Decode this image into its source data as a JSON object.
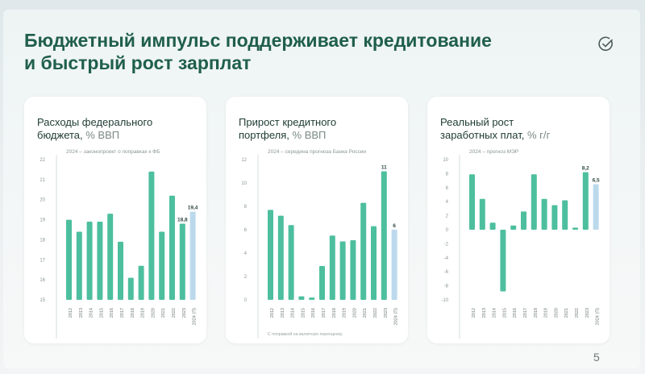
{
  "slide": {
    "title_line1": "Бюджетный импульс поддерживает кредитование",
    "title_line2": "и быстрый рост зарплат",
    "page_number": "5",
    "logo_icon": "checkmark-circle-icon"
  },
  "colors": {
    "bar": "#4dbf9e",
    "forecast": "#bcd9ec",
    "axis": "#d6dcdc",
    "text": "#1e3b33"
  },
  "cards": [
    {
      "title": "Расходы федерального",
      "title2": "бюджета,",
      "unit": "% ВВП",
      "note": "2024 – законопроект о поправках к ФБ"
    },
    {
      "title": "Прирост кредитного",
      "title2": "портфеля,",
      "unit": "% ВВП",
      "note": "2024 – середина прогноза Банка России",
      "footnote": "С поправкой на валютную переоценку"
    },
    {
      "title": "Реальный рост",
      "title2": "заработных плат,",
      "unit": "% г/г",
      "note": "2024 – прогноз МЭР"
    }
  ],
  "chart_data": [
    {
      "type": "bar",
      "title": "Расходы федерального бюджета, % ВВП",
      "categories": [
        "2012",
        "2013",
        "2014",
        "2015",
        "2016",
        "2017",
        "2018",
        "2019",
        "2020",
        "2021",
        "2022",
        "2023",
        "2024 (П)"
      ],
      "values": [
        19.0,
        18.4,
        18.9,
        18.9,
        19.3,
        17.9,
        16.1,
        16.7,
        21.4,
        18.4,
        20.2,
        18.8,
        19.4
      ],
      "labels": [
        "",
        "",
        "",
        "",
        "",
        "",
        "",
        "",
        "",
        "",
        "",
        "18,8",
        "19,4"
      ],
      "ylim": [
        15,
        22
      ],
      "yticks": [
        "15",
        "16",
        "17",
        "18",
        "19",
        "20",
        "21",
        "22"
      ],
      "forecast_index": 12,
      "grid": false
    },
    {
      "type": "bar",
      "title": "Прирост кредитного портфеля, % ВВП",
      "categories": [
        "2012",
        "2013",
        "2014",
        "2015",
        "2016",
        "2017",
        "2018",
        "2019",
        "2020",
        "2021",
        "2022",
        "2023",
        "2024 (П)"
      ],
      "values": [
        7.7,
        7.2,
        6.4,
        0.3,
        0.2,
        2.9,
        5.5,
        5.0,
        5.1,
        8.3,
        6.3,
        11.0,
        6.0
      ],
      "labels": [
        "",
        "",
        "",
        "",
        "",
        "",
        "",
        "",
        "",
        "",
        "",
        "11",
        "6"
      ],
      "ylim": [
        0,
        12
      ],
      "yticks": [
        "0",
        "2",
        "4",
        "6",
        "8",
        "10",
        "12"
      ],
      "forecast_index": 12,
      "grid": false
    },
    {
      "type": "bar",
      "title": "Реальный рост заработных плат, % г/г",
      "categories": [
        "2012",
        "2013",
        "2014",
        "2015",
        "2016",
        "2017",
        "2018",
        "2019",
        "2020",
        "2021",
        "2022",
        "2023",
        "2024 (П)"
      ],
      "values": [
        7.9,
        4.4,
        1.0,
        -8.8,
        0.6,
        2.6,
        7.9,
        4.4,
        3.5,
        4.2,
        0.3,
        8.2,
        6.5
      ],
      "labels": [
        "",
        "",
        "",
        "",
        "",
        "",
        "",
        "",
        "",
        "",
        "",
        "8,2",
        "6,5"
      ],
      "ylim": [
        -10,
        10
      ],
      "yticks": [
        "-10",
        "-8",
        "-6",
        "-4",
        "-2",
        "0",
        "2",
        "4",
        "6",
        "8",
        "10"
      ],
      "forecast_index": 12,
      "grid": false
    }
  ]
}
